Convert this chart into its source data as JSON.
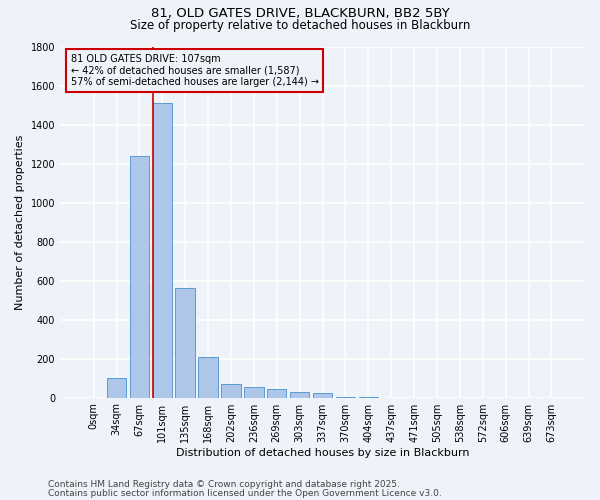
{
  "title_line1": "81, OLD GATES DRIVE, BLACKBURN, BB2 5BY",
  "title_line2": "Size of property relative to detached houses in Blackburn",
  "xlabel": "Distribution of detached houses by size in Blackburn",
  "ylabel": "Number of detached properties",
  "categories": [
    "0sqm",
    "34sqm",
    "67sqm",
    "101sqm",
    "135sqm",
    "168sqm",
    "202sqm",
    "236sqm",
    "269sqm",
    "303sqm",
    "337sqm",
    "370sqm",
    "404sqm",
    "437sqm",
    "471sqm",
    "505sqm",
    "538sqm",
    "572sqm",
    "606sqm",
    "639sqm",
    "673sqm"
  ],
  "values": [
    0,
    100,
    1240,
    1510,
    560,
    210,
    70,
    55,
    45,
    30,
    25,
    5,
    5,
    0,
    0,
    0,
    0,
    0,
    0,
    0,
    0
  ],
  "bar_color": "#aec6e8",
  "bar_edge_color": "#5b9bd5",
  "vline_color": "#cc0000",
  "vline_x_index": 3,
  "annotation_text": "81 OLD GATES DRIVE: 107sqm\n← 42% of detached houses are smaller (1,587)\n57% of semi-detached houses are larger (2,144) →",
  "annotation_box_color": "#cc0000",
  "ylim": [
    0,
    1800
  ],
  "yticks": [
    0,
    200,
    400,
    600,
    800,
    1000,
    1200,
    1400,
    1600,
    1800
  ],
  "footer_line1": "Contains HM Land Registry data © Crown copyright and database right 2025.",
  "footer_line2": "Contains public sector information licensed under the Open Government Licence v3.0.",
  "bg_color": "#eef2f9",
  "grid_color": "#ffffff",
  "title_fontsize": 9.5,
  "subtitle_fontsize": 8.5,
  "axis_label_fontsize": 8,
  "tick_fontsize": 7,
  "annotation_fontsize": 7,
  "footer_fontsize": 6.5
}
